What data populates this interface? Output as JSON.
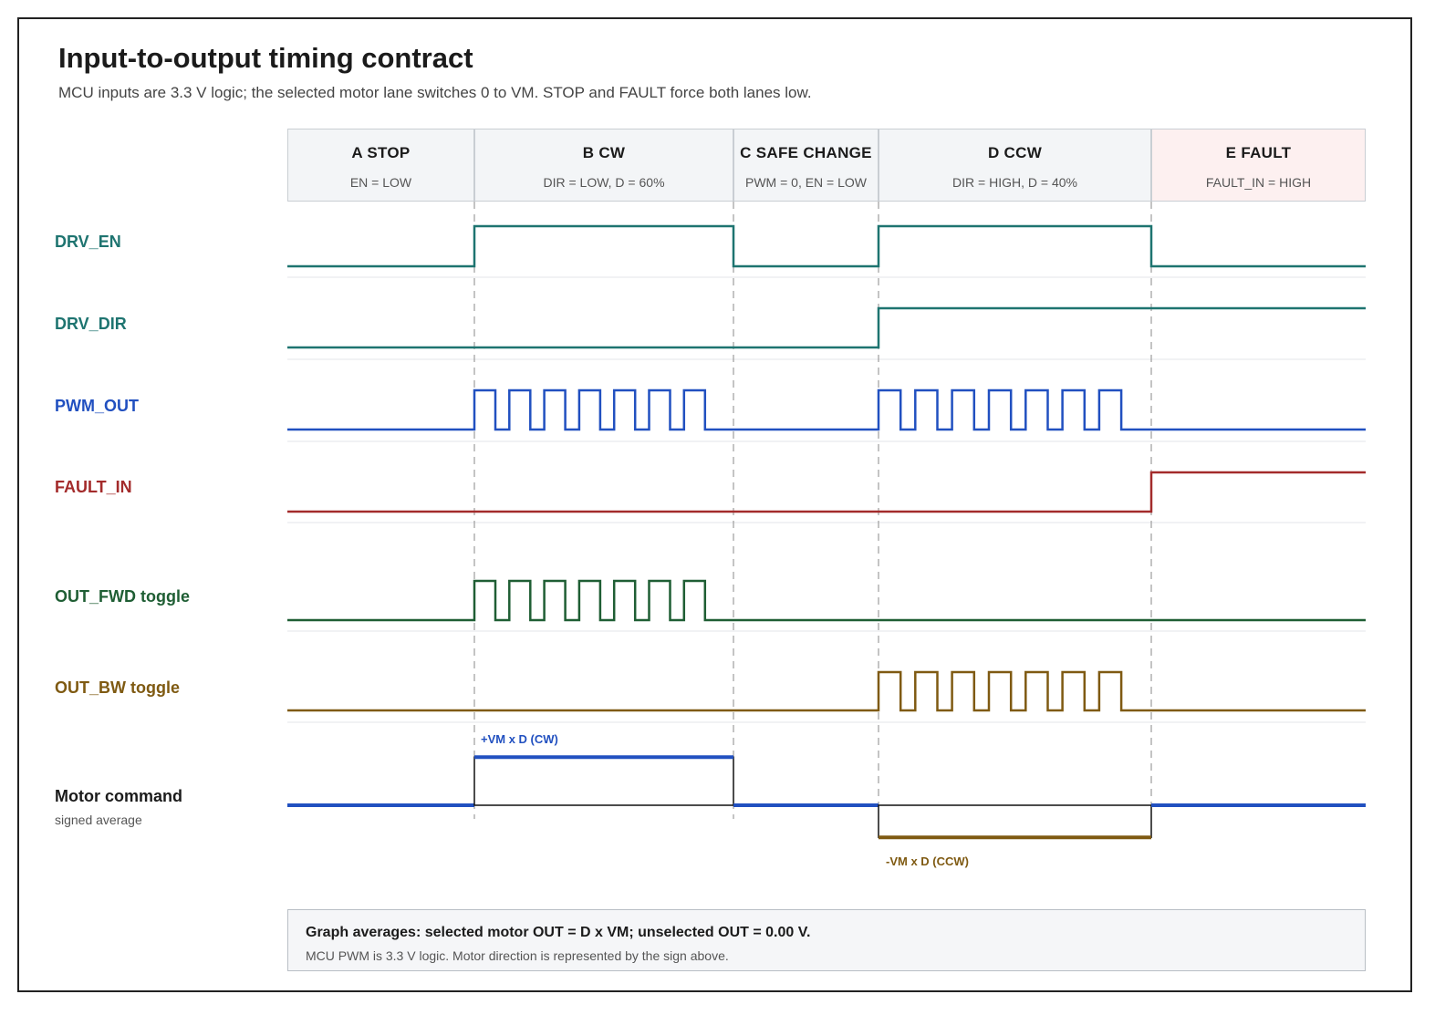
{
  "title": "Input-to-output timing contract",
  "subtitle": "MCU inputs are 3.3 V logic; the selected motor lane switches 0 to VM. STOP and FAULT force both lanes low.",
  "phases": [
    {
      "name": "A  STOP",
      "condition": "EN = LOW"
    },
    {
      "name": "B  CW",
      "condition": "DIR = LOW, D = 60%"
    },
    {
      "name": "C  SAFE CHANGE",
      "condition": "PWM = 0, EN = LOW"
    },
    {
      "name": "D  CCW",
      "condition": "DIR = HIGH, D = 40%"
    },
    {
      "name": "E  FAULT",
      "condition": "FAULT_IN = HIGH"
    }
  ],
  "signals": [
    {
      "name": "DRV_EN",
      "levels": [
        0,
        1,
        0,
        1,
        0
      ],
      "color": "#1e7470"
    },
    {
      "name": "DRV_DIR",
      "levels": [
        0,
        0,
        0,
        1,
        1
      ],
      "color": "#1e7470"
    },
    {
      "name": "PWM_OUT",
      "levels": [
        "low",
        "pwm",
        "low",
        "pwm",
        "low"
      ],
      "pulses_per_active_phase": 7,
      "color": "#2150c0"
    },
    {
      "name": "FAULT_IN",
      "levels": [
        0,
        0,
        0,
        0,
        1
      ],
      "color": "#a32b2b"
    },
    {
      "name": "OUT_FWD toggle",
      "levels": [
        "low",
        "pwm",
        "low",
        "low",
        "low"
      ],
      "pulses_per_active_phase": 7,
      "color": "#1f5e34"
    },
    {
      "name": "OUT_BW toggle",
      "levels": [
        "low",
        "low",
        "low",
        "pwm",
        "low"
      ],
      "pulses_per_active_phase": 7,
      "color": "#7f5a12"
    }
  ],
  "motor": {
    "label": "Motor command",
    "sublabel": "signed average",
    "levels": [
      0,
      0.6,
      0,
      -0.4,
      0
    ],
    "pos_label": "+VM x D (CW)",
    "neg_label": "-VM x D (CCW)",
    "pos_color": "#2150c0",
    "neg_color": "#7f5a12"
  },
  "colors": {
    "phase_fill": "#f3f5f7",
    "fault_fill": "#fdf0f0"
  },
  "summary": {
    "main": "Graph averages: selected motor OUT = D x VM; unselected OUT = 0.00 V.",
    "sub": "MCU PWM is 3.3 V logic. Motor direction is represented by the sign above."
  }
}
